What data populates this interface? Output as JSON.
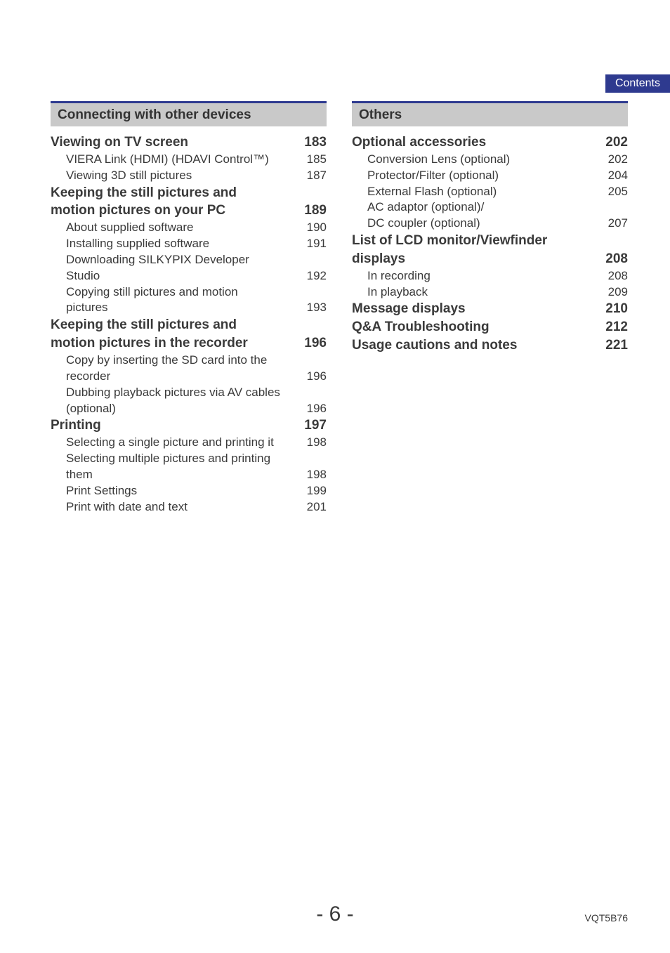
{
  "colors": {
    "header_bg": "#c9c9c9",
    "header_border": "#2e3a8f",
    "tab_bg": "#2e3a8f",
    "tab_text": "#ffffff",
    "body_text": "#3a3a3a",
    "page_bg": "#ffffff"
  },
  "contents_tab": "Contents",
  "page_number": "- 6 -",
  "doc_code": "VQT5B76",
  "left": {
    "section_title": "Connecting with other devices",
    "items": [
      {
        "type": "bold",
        "label": "Viewing on TV screen",
        "page": "183"
      },
      {
        "type": "sub",
        "label": "VIERA Link (HDMI) (HDAVI Control™)",
        "page": "185"
      },
      {
        "type": "sub",
        "label": "Viewing 3D still pictures",
        "page": "187"
      },
      {
        "type": "bold-nobpage",
        "label": "Keeping the still pictures and"
      },
      {
        "type": "bold",
        "label": "motion pictures on your PC",
        "page": "189"
      },
      {
        "type": "sub",
        "label": "About supplied software",
        "page": "190"
      },
      {
        "type": "sub",
        "label": "Installing supplied software",
        "page": "191"
      },
      {
        "type": "subcont",
        "label": "Downloading SILKYPIX Developer"
      },
      {
        "type": "sub",
        "label": "Studio",
        "page": "192"
      },
      {
        "type": "subcont",
        "label": "Copying still pictures and motion"
      },
      {
        "type": "sub",
        "label": "pictures",
        "page": "193"
      },
      {
        "type": "bold-nobpage",
        "label": "Keeping the still pictures and"
      },
      {
        "type": "bold",
        "label": "motion pictures in the recorder",
        "page": "196"
      },
      {
        "type": "subcont",
        "label": "Copy by inserting the SD card into the"
      },
      {
        "type": "sub",
        "label": "recorder",
        "page": "196"
      },
      {
        "type": "subcont",
        "label": "Dubbing playback pictures via AV cables"
      },
      {
        "type": "sub",
        "label": "(optional)",
        "page": "196"
      },
      {
        "type": "bold",
        "label": "Printing",
        "page": "197"
      },
      {
        "type": "sub",
        "label": "Selecting a single picture and printing it",
        "page": "198"
      },
      {
        "type": "subcont",
        "label": "Selecting multiple pictures and printing"
      },
      {
        "type": "sub",
        "label": "them",
        "page": "198"
      },
      {
        "type": "sub",
        "label": "Print Settings",
        "page": "199"
      },
      {
        "type": "sub",
        "label": "Print with date and text",
        "page": "201"
      }
    ]
  },
  "right": {
    "section_title": "Others",
    "items": [
      {
        "type": "bold",
        "label": "Optional accessories",
        "page": "202"
      },
      {
        "type": "sub",
        "label": "Conversion Lens (optional)",
        "page": "202"
      },
      {
        "type": "sub",
        "label": "Protector/Filter (optional)",
        "page": "204"
      },
      {
        "type": "sub",
        "label": "External Flash (optional)",
        "page": "205"
      },
      {
        "type": "subcont",
        "label": "AC adaptor (optional)/"
      },
      {
        "type": "sub",
        "label": "DC coupler (optional)",
        "page": "207"
      },
      {
        "type": "bold-nobpage",
        "label": "List of LCD monitor/Viewfinder"
      },
      {
        "type": "bold",
        "label": "displays",
        "page": "208"
      },
      {
        "type": "sub",
        "label": "In recording",
        "page": "208"
      },
      {
        "type": "sub",
        "label": "In playback",
        "page": "209"
      },
      {
        "type": "bold",
        "label": "Message displays",
        "page": "210"
      },
      {
        "type": "bold",
        "label": "Q&A  Troubleshooting",
        "page": "212"
      },
      {
        "type": "bold",
        "label": "Usage cautions and notes",
        "page": "221"
      }
    ]
  }
}
